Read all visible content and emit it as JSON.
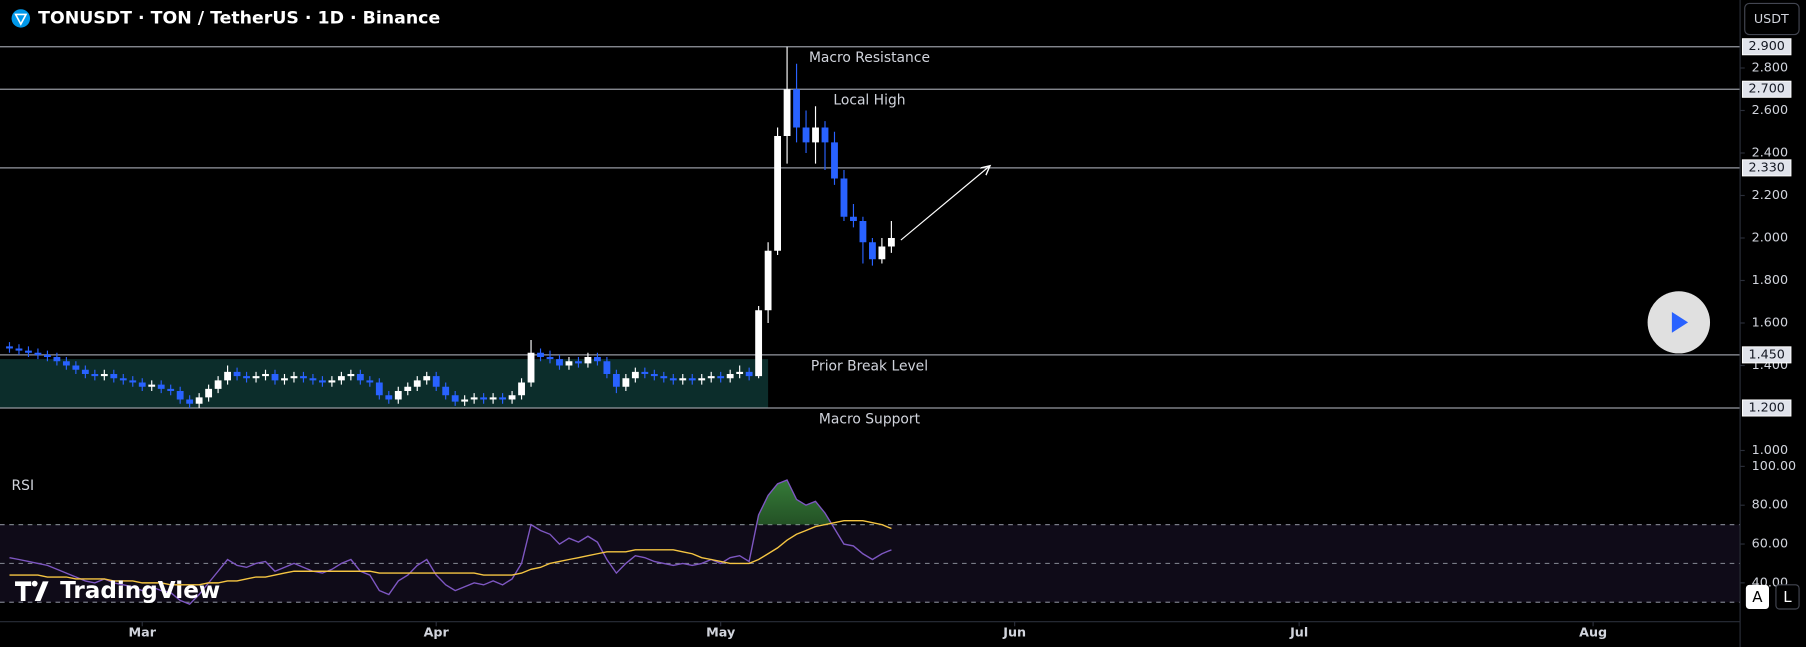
{
  "chart_data": {
    "type": "candlestick",
    "title": "TONUSDT · TON / TetherUS · 1D · Binance",
    "currency_button": "USDT",
    "watermark": "TradingView",
    "scale_buttons": [
      "A",
      "L"
    ],
    "up_color": "#ffffff",
    "down_color": "#2962ff",
    "xlim": [
      -15,
      168.5
    ],
    "xticks": [
      {
        "value": 0,
        "label": "Mar"
      },
      {
        "value": 31,
        "label": "Apr"
      },
      {
        "value": 61,
        "label": "May"
      },
      {
        "value": 92,
        "label": "Jun"
      },
      {
        "value": 122,
        "label": "Jul"
      },
      {
        "value": 153,
        "label": "Aug"
      }
    ],
    "ylim": [
      0.98,
      3.12
    ],
    "yticks": [
      {
        "value": 2.8,
        "label": "2.800"
      },
      {
        "value": 2.6,
        "label": "2.600"
      },
      {
        "value": 2.4,
        "label": "2.400"
      },
      {
        "value": 2.2,
        "label": "2.200"
      },
      {
        "value": 2.0,
        "label": "2.000"
      },
      {
        "value": 1.8,
        "label": "1.800"
      },
      {
        "value": 1.6,
        "label": "1.600"
      },
      {
        "value": 1.4,
        "label": "1.400"
      },
      {
        "value": 1.0,
        "label": "1.000"
      }
    ],
    "x": [
      -14,
      -13,
      -12,
      -11,
      -10,
      -9,
      -8,
      -7,
      -6,
      -5,
      -4,
      -3,
      -2,
      -1,
      0,
      1,
      2,
      3,
      4,
      5,
      6,
      7,
      8,
      9,
      10,
      11,
      12,
      13,
      14,
      15,
      16,
      17,
      18,
      19,
      20,
      21,
      22,
      23,
      24,
      25,
      26,
      27,
      28,
      29,
      30,
      31,
      32,
      33,
      34,
      35,
      36,
      37,
      38,
      39,
      40,
      41,
      42,
      43,
      44,
      45,
      46,
      47,
      48,
      49,
      50,
      51,
      52,
      53,
      54,
      55,
      56,
      57,
      58,
      59,
      60,
      61,
      62,
      63,
      64,
      65,
      66,
      67,
      68,
      69,
      70,
      71,
      72,
      73,
      74,
      75,
      76,
      77,
      78,
      79
    ],
    "ohlc": {
      "open": [
        1.49,
        1.48,
        1.47,
        1.46,
        1.45,
        1.44,
        1.42,
        1.4,
        1.38,
        1.36,
        1.35,
        1.36,
        1.34,
        1.33,
        1.32,
        1.3,
        1.31,
        1.29,
        1.28,
        1.24,
        1.22,
        1.25,
        1.29,
        1.33,
        1.37,
        1.35,
        1.34,
        1.35,
        1.36,
        1.33,
        1.34,
        1.35,
        1.34,
        1.33,
        1.32,
        1.33,
        1.35,
        1.36,
        1.33,
        1.32,
        1.26,
        1.24,
        1.28,
        1.3,
        1.33,
        1.35,
        1.3,
        1.26,
        1.23,
        1.24,
        1.25,
        1.24,
        1.25,
        1.24,
        1.26,
        1.32,
        1.46,
        1.44,
        1.43,
        1.4,
        1.42,
        1.41,
        1.44,
        1.42,
        1.36,
        1.3,
        1.34,
        1.37,
        1.36,
        1.35,
        1.34,
        1.33,
        1.34,
        1.33,
        1.34,
        1.35,
        1.34,
        1.36,
        1.37,
        1.35,
        1.66,
        1.94,
        2.48,
        2.7,
        2.52,
        2.45,
        2.52,
        2.45,
        2.28,
        2.1,
        2.08,
        1.98,
        1.9,
        1.96
      ],
      "high": [
        1.51,
        1.5,
        1.49,
        1.48,
        1.47,
        1.46,
        1.44,
        1.42,
        1.4,
        1.38,
        1.38,
        1.38,
        1.36,
        1.35,
        1.34,
        1.33,
        1.33,
        1.31,
        1.3,
        1.26,
        1.27,
        1.31,
        1.35,
        1.4,
        1.39,
        1.37,
        1.37,
        1.38,
        1.38,
        1.36,
        1.37,
        1.37,
        1.36,
        1.35,
        1.35,
        1.37,
        1.38,
        1.38,
        1.35,
        1.34,
        1.28,
        1.3,
        1.32,
        1.35,
        1.37,
        1.37,
        1.32,
        1.28,
        1.26,
        1.27,
        1.27,
        1.27,
        1.27,
        1.28,
        1.34,
        1.52,
        1.48,
        1.47,
        1.45,
        1.44,
        1.44,
        1.46,
        1.46,
        1.44,
        1.38,
        1.36,
        1.39,
        1.39,
        1.38,
        1.37,
        1.36,
        1.36,
        1.36,
        1.36,
        1.37,
        1.37,
        1.38,
        1.4,
        1.39,
        1.68,
        1.98,
        2.52,
        2.9,
        2.82,
        2.6,
        2.62,
        2.55,
        2.5,
        2.32,
        2.16,
        2.1,
        2.0,
        2.0,
        2.08
      ],
      "low": [
        1.46,
        1.45,
        1.44,
        1.43,
        1.42,
        1.4,
        1.38,
        1.36,
        1.34,
        1.33,
        1.33,
        1.32,
        1.31,
        1.3,
        1.28,
        1.28,
        1.27,
        1.26,
        1.22,
        1.2,
        1.2,
        1.23,
        1.27,
        1.31,
        1.33,
        1.32,
        1.32,
        1.33,
        1.31,
        1.31,
        1.32,
        1.32,
        1.31,
        1.3,
        1.3,
        1.31,
        1.33,
        1.31,
        1.3,
        1.24,
        1.22,
        1.22,
        1.26,
        1.28,
        1.31,
        1.28,
        1.24,
        1.21,
        1.21,
        1.22,
        1.22,
        1.22,
        1.22,
        1.22,
        1.24,
        1.3,
        1.42,
        1.41,
        1.38,
        1.38,
        1.39,
        1.39,
        1.4,
        1.34,
        1.27,
        1.28,
        1.32,
        1.34,
        1.33,
        1.32,
        1.31,
        1.31,
        1.31,
        1.31,
        1.32,
        1.32,
        1.32,
        1.34,
        1.33,
        1.34,
        1.6,
        1.92,
        2.35,
        2.45,
        2.4,
        2.35,
        2.32,
        2.25,
        2.08,
        2.05,
        1.88,
        1.87,
        1.88,
        1.93
      ],
      "close": [
        1.48,
        1.47,
        1.46,
        1.45,
        1.44,
        1.42,
        1.4,
        1.38,
        1.36,
        1.35,
        1.36,
        1.34,
        1.33,
        1.32,
        1.3,
        1.31,
        1.29,
        1.28,
        1.24,
        1.22,
        1.25,
        1.29,
        1.33,
        1.37,
        1.35,
        1.34,
        1.35,
        1.36,
        1.33,
        1.34,
        1.35,
        1.34,
        1.33,
        1.32,
        1.33,
        1.35,
        1.36,
        1.33,
        1.32,
        1.26,
        1.24,
        1.28,
        1.3,
        1.33,
        1.35,
        1.3,
        1.26,
        1.23,
        1.24,
        1.25,
        1.24,
        1.25,
        1.24,
        1.26,
        1.32,
        1.46,
        1.44,
        1.43,
        1.4,
        1.42,
        1.41,
        1.44,
        1.42,
        1.36,
        1.3,
        1.34,
        1.37,
        1.36,
        1.35,
        1.34,
        1.33,
        1.34,
        1.33,
        1.34,
        1.35,
        1.34,
        1.36,
        1.37,
        1.35,
        1.66,
        1.94,
        2.48,
        2.7,
        2.52,
        2.45,
        2.52,
        2.45,
        2.28,
        2.1,
        2.08,
        1.98,
        1.9,
        1.96,
        2.0
      ]
    },
    "levels": [
      {
        "value": 2.9,
        "label": "2.900",
        "text": "Macro Resistance"
      },
      {
        "value": 2.7,
        "label": "2.700",
        "text": "Local High"
      },
      {
        "value": 2.33,
        "label": "2.330"
      },
      {
        "value": 1.45,
        "label": "1.450",
        "text": "Prior Break Level"
      },
      {
        "value": 1.2,
        "label": "1.200",
        "text": "Macro Support"
      }
    ],
    "zone": {
      "x": [
        -15,
        66
      ],
      "y": [
        1.2,
        1.43
      ],
      "color": "#0c2d2b"
    },
    "arrow": {
      "x": [
        80,
        89.4
      ],
      "y": [
        1.99,
        2.34
      ]
    },
    "indicator": {
      "type": "line",
      "label": "RSI",
      "ylim": [
        20,
        106
      ],
      "yticks": [
        {
          "value": 100,
          "label": "100.00"
        },
        {
          "value": 80,
          "label": "80.00"
        },
        {
          "value": 60,
          "label": "60.00"
        },
        {
          "value": 40,
          "label": "40.00"
        }
      ],
      "band": [
        30,
        70
      ],
      "midline": 50,
      "series": [
        {
          "color": "#7e57c2",
          "values": [
            53,
            52,
            51,
            50,
            49,
            47,
            45,
            43,
            41,
            40,
            42,
            40,
            39,
            38,
            36,
            38,
            36,
            35,
            31,
            29,
            34,
            40,
            46,
            52,
            49,
            48,
            50,
            51,
            46,
            48,
            50,
            48,
            46,
            45,
            47,
            50,
            52,
            46,
            44,
            36,
            34,
            41,
            44,
            49,
            52,
            44,
            39,
            36,
            38,
            40,
            39,
            41,
            39,
            42,
            50,
            70,
            67,
            65,
            60,
            63,
            61,
            64,
            61,
            52,
            45,
            50,
            54,
            53,
            51,
            50,
            49,
            50,
            49,
            50,
            52,
            50,
            53,
            54,
            51,
            75,
            85,
            91,
            93,
            83,
            80,
            82,
            76,
            68,
            60,
            59,
            55,
            52,
            55,
            57
          ]
        },
        {
          "color": "#f5c542",
          "values": [
            44,
            44,
            44,
            44,
            43,
            43,
            43,
            42,
            42,
            42,
            42,
            41,
            41,
            41,
            40,
            40,
            40,
            39,
            39,
            39,
            39,
            40,
            40,
            41,
            41,
            42,
            43,
            43,
            44,
            45,
            46,
            46,
            46,
            46,
            46,
            46,
            46,
            46,
            46,
            45,
            45,
            45,
            45,
            45,
            45,
            45,
            45,
            45,
            45,
            45,
            44,
            44,
            44,
            44,
            45,
            47,
            48,
            50,
            51,
            52,
            53,
            54,
            55,
            56,
            56,
            56,
            57,
            57,
            57,
            57,
            57,
            56,
            55,
            53,
            52,
            51,
            50,
            50,
            50,
            52,
            55,
            58,
            62,
            65,
            67,
            69,
            70,
            71,
            72,
            72,
            72,
            71,
            70,
            68
          ]
        }
      ]
    }
  }
}
